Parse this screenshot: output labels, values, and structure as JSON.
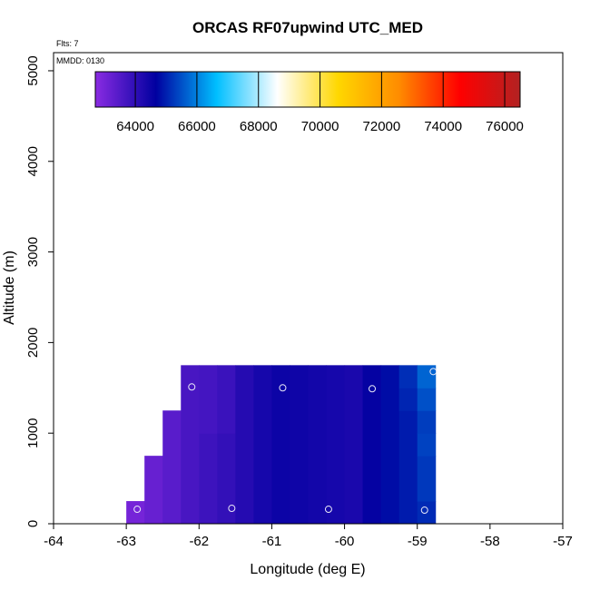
{
  "chart_data": {
    "type": "heatmap",
    "title": "ORCAS RF07upwind UTC_MED",
    "subtitle_flts": "Flts: 7",
    "subtitle_mmdd": "MMDD: 0130",
    "xlabel": "Longitude (deg E)",
    "ylabel": "Altitude (m)",
    "xlim": [
      -64,
      -57
    ],
    "ylim": [
      0,
      5200
    ],
    "xticks": [
      -64,
      -63,
      -62,
      -61,
      -60,
      -59,
      -58,
      -57
    ],
    "xtick_labels": [
      "-64",
      "-63",
      "-62",
      "-61",
      "-60",
      "-59",
      "-58",
      "-57"
    ],
    "yticks": [
      0,
      1000,
      2000,
      3000,
      4000,
      5000
    ],
    "ytick_labels": [
      "0",
      "1000",
      "2000",
      "3000",
      "4000",
      "5000"
    ],
    "colorbar": {
      "range": [
        62700,
        76500
      ],
      "ticks": [
        64000,
        66000,
        68000,
        70000,
        72000,
        74000,
        76000
      ],
      "tick_labels": [
        "64000",
        "66000",
        "68000",
        "70000",
        "72000",
        "74000",
        "76000"
      ],
      "stops": [
        "#8a2be2",
        "#0000a0",
        "#00bfff",
        "#ffffff",
        "#ffd700",
        "#ff8c00",
        "#ff0000",
        "#b22222"
      ]
    },
    "cells": [
      {
        "lon0": -63.0,
        "lon1": -62.75,
        "alt0": 0,
        "alt1": 250,
        "value": 63000
      },
      {
        "lon0": -62.75,
        "lon1": -62.5,
        "alt0": 0,
        "alt1": 750,
        "value": 63200
      },
      {
        "lon0": -62.5,
        "lon1": -62.25,
        "alt0": 0,
        "alt1": 1250,
        "value": 63400
      },
      {
        "lon0": -62.25,
        "lon1": -62.0,
        "alt0": 0,
        "alt1": 1750,
        "value": 63650
      },
      {
        "lon0": -62.0,
        "lon1": -61.75,
        "alt0": 0,
        "alt1": 1000,
        "value": 63800
      },
      {
        "lon0": -62.0,
        "lon1": -61.75,
        "alt0": 1000,
        "alt1": 1750,
        "value": 63700
      },
      {
        "lon0": -61.75,
        "lon1": -61.5,
        "alt0": 0,
        "alt1": 1000,
        "value": 63950
      },
      {
        "lon0": -61.75,
        "lon1": -61.5,
        "alt0": 1000,
        "alt1": 1750,
        "value": 63850
      },
      {
        "lon0": -61.5,
        "lon1": -61.25,
        "alt0": 0,
        "alt1": 1750,
        "value": 64150
      },
      {
        "lon0": -61.25,
        "lon1": -61.0,
        "alt0": 0,
        "alt1": 1750,
        "value": 64350
      },
      {
        "lon0": -61.0,
        "lon1": -60.75,
        "alt0": 0,
        "alt1": 1750,
        "value": 64500
      },
      {
        "lon0": -60.75,
        "lon1": -60.5,
        "alt0": 0,
        "alt1": 1750,
        "value": 64450
      },
      {
        "lon0": -60.5,
        "lon1": -60.25,
        "alt0": 0,
        "alt1": 1750,
        "value": 64400
      },
      {
        "lon0": -60.25,
        "lon1": -60.0,
        "alt0": 0,
        "alt1": 1750,
        "value": 64350
      },
      {
        "lon0": -60.0,
        "lon1": -59.75,
        "alt0": 0,
        "alt1": 1750,
        "value": 64300
      },
      {
        "lon0": -59.75,
        "lon1": -59.5,
        "alt0": 0,
        "alt1": 1750,
        "value": 64600
      },
      {
        "lon0": -59.5,
        "lon1": -59.25,
        "alt0": 0,
        "alt1": 1750,
        "value": 64800
      },
      {
        "lon0": -59.25,
        "lon1": -59.0,
        "alt0": 0,
        "alt1": 1250,
        "value": 64950
      },
      {
        "lon0": -59.25,
        "lon1": -59.0,
        "alt0": 1250,
        "alt1": 1500,
        "value": 65050
      },
      {
        "lon0": -59.25,
        "lon1": -59.0,
        "alt0": 1500,
        "alt1": 1750,
        "value": 65150
      },
      {
        "lon0": -59.0,
        "lon1": -58.75,
        "alt0": 0,
        "alt1": 250,
        "value": 65100
      },
      {
        "lon0": -59.0,
        "lon1": -58.75,
        "alt0": 250,
        "alt1": 750,
        "value": 65250
      },
      {
        "lon0": -59.0,
        "lon1": -58.75,
        "alt0": 750,
        "alt1": 1000,
        "value": 65350
      },
      {
        "lon0": -59.0,
        "lon1": -58.75,
        "alt0": 1000,
        "alt1": 1250,
        "value": 65300
      },
      {
        "lon0": -59.0,
        "lon1": -58.75,
        "alt0": 1250,
        "alt1": 1500,
        "value": 65500
      },
      {
        "lon0": -59.0,
        "lon1": -58.75,
        "alt0": 1500,
        "alt1": 1750,
        "value": 65700
      }
    ],
    "points": [
      {
        "lon": -62.85,
        "alt": 160
      },
      {
        "lon": -61.55,
        "alt": 170
      },
      {
        "lon": -60.22,
        "alt": 160
      },
      {
        "lon": -58.9,
        "alt": 150
      },
      {
        "lon": -62.1,
        "alt": 1510
      },
      {
        "lon": -60.85,
        "alt": 1500
      },
      {
        "lon": -59.62,
        "alt": 1490
      },
      {
        "lon": -58.78,
        "alt": 1680
      }
    ]
  }
}
